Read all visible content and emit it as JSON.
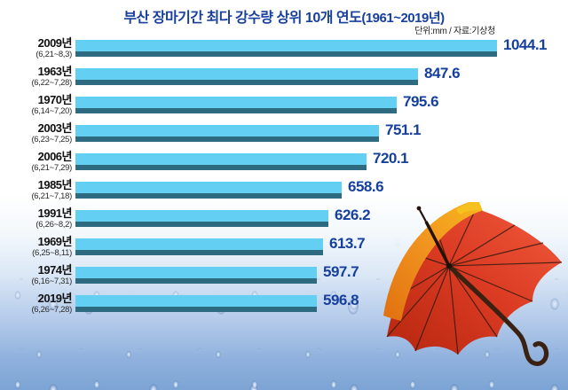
{
  "title": {
    "main": "부산 장마기간 최다 강수량 상위 10개 연도",
    "paren": "(1961~2019년)"
  },
  "source_note": "단위:mm / 자료:기상청",
  "illustration": "red-orange-umbrella-on-rainy-window-background",
  "colors": {
    "bar-fill": "#63cff3",
    "bar-shadow": "#2e6b80",
    "value-text": "#16409d",
    "title-text": "#173f9e",
    "note-text": "#222222",
    "label-text": "#111111"
  },
  "chart_data": {
    "type": "bar",
    "orientation": "horizontal",
    "title": "부산 장마기간 최다 강수량 상위 10개 연도(1961~2019년)",
    "unit": "mm",
    "source": "기상청",
    "categories": [
      "2009년",
      "1963년",
      "1970년",
      "2003년",
      "2006년",
      "1985년",
      "1991년",
      "1969년",
      "1974년",
      "2019년"
    ],
    "periods": [
      "(6,21~8,3)",
      "(6,22~7,28)",
      "(6,14~7,20)",
      "(6,23~7,25)",
      "(6,21~7,29)",
      "(6,21~7,18)",
      "(6,26~8,2)",
      "(6,25~8,11)",
      "(6,16~7,31)",
      "(6,26~7,28)"
    ],
    "values": [
      1044.1,
      847.6,
      795.6,
      751.1,
      720.1,
      658.6,
      626.2,
      613.7,
      597.7,
      596.8
    ],
    "xlim": [
      0,
      1100
    ],
    "legend": "none",
    "grid": "off"
  }
}
